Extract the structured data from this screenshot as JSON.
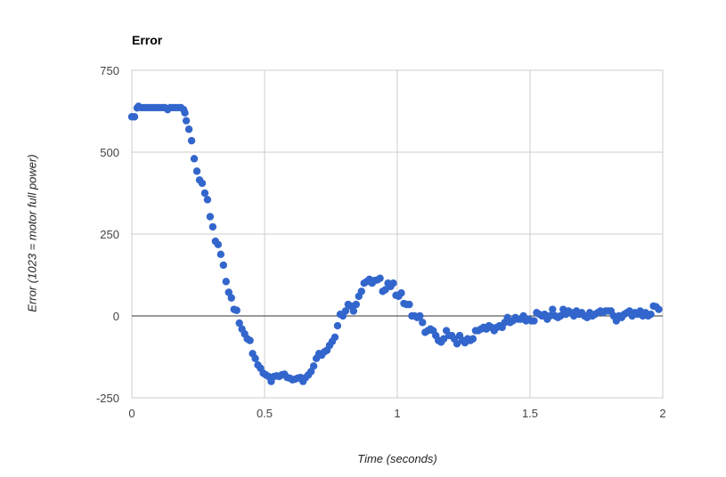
{
  "chart_data": {
    "type": "scatter",
    "title": "Error",
    "xlabel": "Time (seconds)",
    "ylabel": "Error (1023 = motor full power)",
    "xlim": [
      0,
      2
    ],
    "ylim": [
      -250,
      750
    ],
    "xticks": [
      "0",
      "0.5",
      "1",
      "1.5",
      "2"
    ],
    "yticks": [
      "750",
      "500",
      "250",
      "0",
      "-250"
    ],
    "xtick_values": [
      0,
      0.5,
      1,
      1.5,
      2
    ],
    "ytick_values": [
      750,
      500,
      250,
      0,
      -250
    ],
    "grid": true,
    "series": [
      {
        "color": "#3366cc",
        "points": [
          [
            0.0,
            608
          ],
          [
            0.01,
            608
          ],
          [
            0.02,
            635
          ],
          [
            0.025,
            640
          ],
          [
            0.035,
            636
          ],
          [
            0.045,
            636
          ],
          [
            0.055,
            636
          ],
          [
            0.065,
            636
          ],
          [
            0.075,
            636
          ],
          [
            0.085,
            636
          ],
          [
            0.095,
            636
          ],
          [
            0.105,
            636
          ],
          [
            0.115,
            636
          ],
          [
            0.125,
            636
          ],
          [
            0.135,
            630
          ],
          [
            0.145,
            636
          ],
          [
            0.155,
            636
          ],
          [
            0.165,
            636
          ],
          [
            0.175,
            636
          ],
          [
            0.185,
            636
          ],
          [
            0.195,
            630
          ],
          [
            0.2,
            620
          ],
          [
            0.205,
            596
          ],
          [
            0.215,
            570
          ],
          [
            0.225,
            535
          ],
          [
            0.235,
            480
          ],
          [
            0.245,
            442
          ],
          [
            0.255,
            415
          ],
          [
            0.265,
            405
          ],
          [
            0.275,
            375
          ],
          [
            0.285,
            355
          ],
          [
            0.295,
            303
          ],
          [
            0.305,
            272
          ],
          [
            0.315,
            228
          ],
          [
            0.325,
            218
          ],
          [
            0.335,
            188
          ],
          [
            0.345,
            155
          ],
          [
            0.355,
            105
          ],
          [
            0.365,
            72
          ],
          [
            0.375,
            55
          ],
          [
            0.385,
            20
          ],
          [
            0.395,
            17
          ],
          [
            0.405,
            -22
          ],
          [
            0.415,
            -40
          ],
          [
            0.425,
            -55
          ],
          [
            0.435,
            -70
          ],
          [
            0.445,
            -75
          ],
          [
            0.455,
            -115
          ],
          [
            0.465,
            -130
          ],
          [
            0.475,
            -150
          ],
          [
            0.485,
            -160
          ],
          [
            0.495,
            -175
          ],
          [
            0.505,
            -180
          ],
          [
            0.515,
            -185
          ],
          [
            0.525,
            -200
          ],
          [
            0.535,
            -185
          ],
          [
            0.545,
            -183
          ],
          [
            0.555,
            -185
          ],
          [
            0.565,
            -180
          ],
          [
            0.575,
            -178
          ],
          [
            0.585,
            -188
          ],
          [
            0.595,
            -190
          ],
          [
            0.605,
            -195
          ],
          [
            0.615,
            -193
          ],
          [
            0.625,
            -190
          ],
          [
            0.635,
            -188
          ],
          [
            0.645,
            -200
          ],
          [
            0.655,
            -188
          ],
          [
            0.665,
            -180
          ],
          [
            0.675,
            -170
          ],
          [
            0.685,
            -153
          ],
          [
            0.695,
            -130
          ],
          [
            0.705,
            -115
          ],
          [
            0.715,
            -120
          ],
          [
            0.725,
            -110
          ],
          [
            0.735,
            -105
          ],
          [
            0.745,
            -90
          ],
          [
            0.755,
            -78
          ],
          [
            0.765,
            -65
          ],
          [
            0.775,
            -30
          ],
          [
            0.785,
            5
          ],
          [
            0.795,
            0
          ],
          [
            0.805,
            15
          ],
          [
            0.815,
            35
          ],
          [
            0.825,
            30
          ],
          [
            0.835,
            15
          ],
          [
            0.845,
            35
          ],
          [
            0.855,
            60
          ],
          [
            0.865,
            75
          ],
          [
            0.875,
            100
          ],
          [
            0.885,
            105
          ],
          [
            0.895,
            112
          ],
          [
            0.905,
            100
          ],
          [
            0.915,
            108
          ],
          [
            0.925,
            110
          ],
          [
            0.935,
            115
          ],
          [
            0.945,
            75
          ],
          [
            0.955,
            80
          ],
          [
            0.965,
            100
          ],
          [
            0.975,
            90
          ],
          [
            0.985,
            100
          ],
          [
            0.995,
            63
          ],
          [
            1.005,
            60
          ],
          [
            1.015,
            70
          ],
          [
            1.025,
            38
          ],
          [
            1.035,
            35
          ],
          [
            1.045,
            35
          ],
          [
            1.055,
            0
          ],
          [
            1.065,
            0
          ],
          [
            1.075,
            -5
          ],
          [
            1.085,
            0
          ],
          [
            1.095,
            -20
          ],
          [
            1.105,
            -50
          ],
          [
            1.115,
            -45
          ],
          [
            1.125,
            -40
          ],
          [
            1.135,
            -45
          ],
          [
            1.145,
            -60
          ],
          [
            1.155,
            -75
          ],
          [
            1.165,
            -80
          ],
          [
            1.175,
            -70
          ],
          [
            1.185,
            -45
          ],
          [
            1.195,
            -60
          ],
          [
            1.205,
            -60
          ],
          [
            1.215,
            -70
          ],
          [
            1.225,
            -85
          ],
          [
            1.235,
            -60
          ],
          [
            1.245,
            -75
          ],
          [
            1.255,
            -82
          ],
          [
            1.265,
            -70
          ],
          [
            1.275,
            -75
          ],
          [
            1.285,
            -70
          ],
          [
            1.295,
            -45
          ],
          [
            1.305,
            -45
          ],
          [
            1.315,
            -40
          ],
          [
            1.325,
            -35
          ],
          [
            1.335,
            -40
          ],
          [
            1.345,
            -30
          ],
          [
            1.355,
            -35
          ],
          [
            1.365,
            -45
          ],
          [
            1.375,
            -35
          ],
          [
            1.385,
            -30
          ],
          [
            1.395,
            -35
          ],
          [
            1.405,
            -20
          ],
          [
            1.415,
            -5
          ],
          [
            1.425,
            -20
          ],
          [
            1.435,
            -15
          ],
          [
            1.445,
            -5
          ],
          [
            1.455,
            -10
          ],
          [
            1.465,
            -10
          ],
          [
            1.475,
            0
          ],
          [
            1.485,
            -15
          ],
          [
            1.495,
            -10
          ],
          [
            1.505,
            -15
          ],
          [
            1.515,
            -15
          ],
          [
            1.525,
            10
          ],
          [
            1.535,
            5
          ],
          [
            1.545,
            0
          ],
          [
            1.555,
            5
          ],
          [
            1.565,
            -10
          ],
          [
            1.575,
            0
          ],
          [
            1.585,
            20
          ],
          [
            1.595,
            0
          ],
          [
            1.605,
            -5
          ],
          [
            1.615,
            0
          ],
          [
            1.625,
            20
          ],
          [
            1.635,
            5
          ],
          [
            1.645,
            15
          ],
          [
            1.655,
            10
          ],
          [
            1.665,
            0
          ],
          [
            1.675,
            15
          ],
          [
            1.685,
            5
          ],
          [
            1.695,
            10
          ],
          [
            1.705,
            0
          ],
          [
            1.715,
            -5
          ],
          [
            1.725,
            10
          ],
          [
            1.735,
            0
          ],
          [
            1.745,
            5
          ],
          [
            1.755,
            10
          ],
          [
            1.765,
            15
          ],
          [
            1.775,
            10
          ],
          [
            1.785,
            15
          ],
          [
            1.795,
            15
          ],
          [
            1.805,
            15
          ],
          [
            1.815,
            0
          ],
          [
            1.825,
            -15
          ],
          [
            1.835,
            0
          ],
          [
            1.845,
            -5
          ],
          [
            1.855,
            5
          ],
          [
            1.865,
            10
          ],
          [
            1.875,
            15
          ],
          [
            1.885,
            0
          ],
          [
            1.895,
            10
          ],
          [
            1.905,
            5
          ],
          [
            1.915,
            15
          ],
          [
            1.925,
            0
          ],
          [
            1.935,
            10
          ],
          [
            1.945,
            0
          ],
          [
            1.955,
            5
          ],
          [
            1.965,
            30
          ],
          [
            1.975,
            28
          ],
          [
            1.985,
            20
          ]
        ]
      }
    ]
  }
}
